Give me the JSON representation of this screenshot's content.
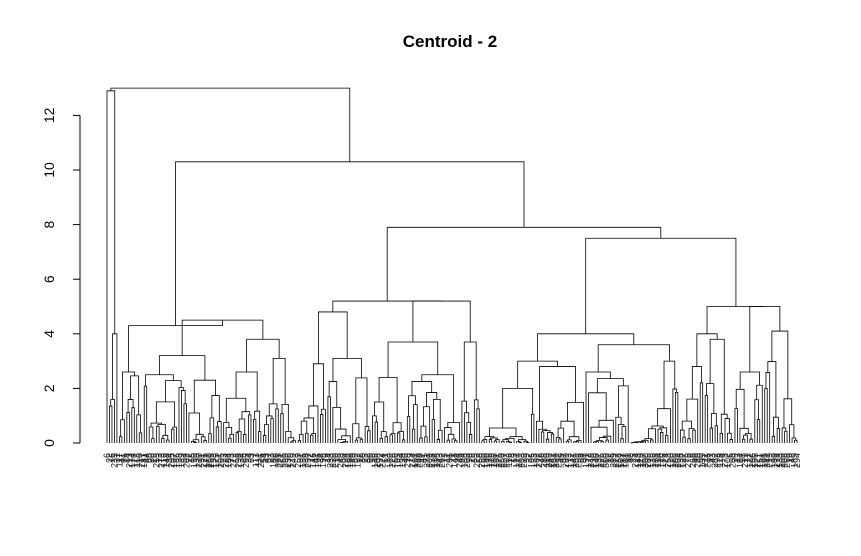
{
  "chart_data": {
    "type": "dendrogram",
    "title": "Centroid - 2",
    "xlabel": "",
    "ylabel": "",
    "ylim": [
      0,
      13
    ],
    "yticks": [
      0,
      2,
      4,
      6,
      8,
      10,
      12
    ],
    "grid": false,
    "legend": "none",
    "leaf_count": 300,
    "major_merges": [
      {
        "name": "root",
        "height": 13.0
      },
      {
        "name": "outlier-pair",
        "height": 12.9
      },
      {
        "name": "main-split",
        "height": 10.3
      },
      {
        "name": "right-split",
        "height": 7.9
      },
      {
        "name": "far-right-split",
        "height": 7.5
      },
      {
        "name": "left-subtree",
        "height": 5.2
      },
      {
        "name": "mid-right-subtree",
        "height": 4.0
      },
      {
        "name": "rightmost-subtree",
        "height": 5.0
      },
      {
        "name": "leftmost-subtree",
        "height": 4.5
      }
    ]
  }
}
